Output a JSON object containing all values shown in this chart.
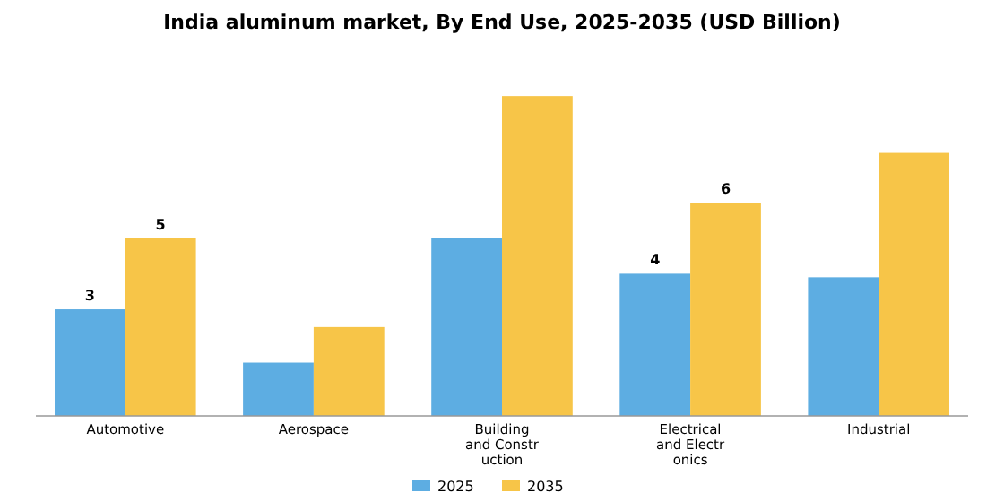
{
  "chart_data": {
    "type": "bar",
    "title": "India aluminum market, By End Use, 2025-2035 (USD Billion)",
    "categories": [
      "Automotive",
      "Aerospace",
      "Building and Construction",
      "Electrical and Electronics",
      "Industrial"
    ],
    "series": [
      {
        "name": "2025",
        "color": "#5dade2",
        "values": [
          3,
          1.5,
          5,
          4,
          3.9
        ],
        "value_labels": [
          "3",
          null,
          null,
          "4",
          null
        ]
      },
      {
        "name": "2035",
        "color": "#f7c548",
        "values": [
          5,
          2.5,
          9,
          6,
          7.4
        ],
        "value_labels": [
          "5",
          null,
          null,
          "6",
          null
        ]
      }
    ],
    "legend": "bottom"
  }
}
